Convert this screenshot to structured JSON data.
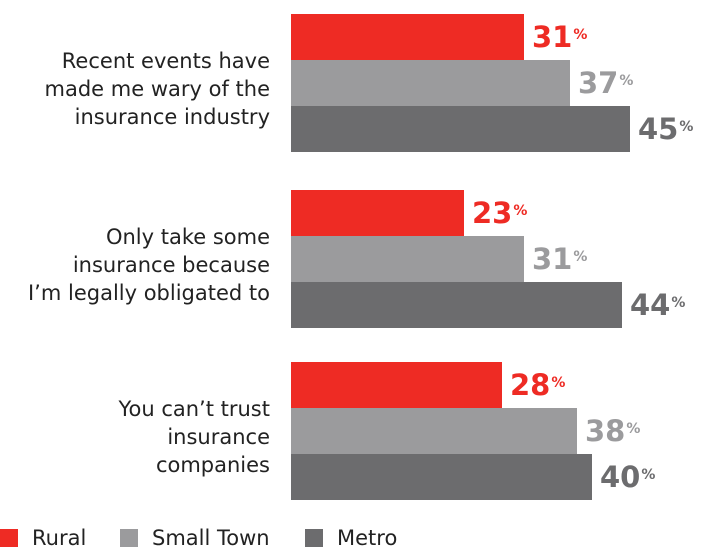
{
  "chart_data": {
    "type": "bar",
    "orientation": "horizontal",
    "unit": "%",
    "categories": [
      "Recent  events have made me wary of the insurance industry",
      "Only take some insurance because I’m legally obligated to",
      "You can’t trust insurance companies"
    ],
    "category_lines": [
      [
        "Recent  events have",
        "made me wary of the",
        "insurance industry"
      ],
      [
        "Only take some",
        "insurance because",
        "I’m legally obligated to"
      ],
      [
        "You can’t trust",
        "insurance",
        "companies"
      ]
    ],
    "series": [
      {
        "name": "Rural",
        "color": "#ee2b24",
        "label_color": "#ee2b24",
        "values": [
          31,
          23,
          28
        ]
      },
      {
        "name": "Small Town",
        "color": "#9b9b9d",
        "label_color": "#9b9b9d",
        "values": [
          37,
          31,
          38
        ]
      },
      {
        "name": "Metro",
        "color": "#6c6c6e",
        "label_color": "#6c6c6e",
        "values": [
          45,
          44,
          40
        ]
      }
    ],
    "legend": {
      "position": "bottom-left"
    },
    "grid": false,
    "xlim": [
      0,
      60
    ]
  }
}
